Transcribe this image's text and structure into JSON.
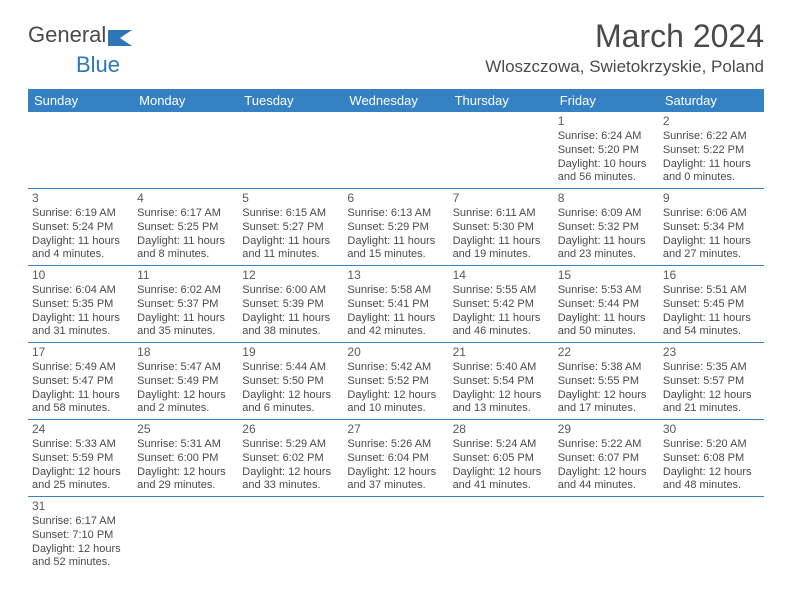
{
  "logo": {
    "text1": "General",
    "text2": "Blue"
  },
  "title": "March 2024",
  "location": "Wloszczowa, Swietokrzyskie, Poland",
  "colors": {
    "header_bg": "#3481c4",
    "header_text": "#ffffff",
    "body_text": "#4a4a4a",
    "border": "#3481c4",
    "logo_blue": "#2b77b8"
  },
  "weekdays": [
    "Sunday",
    "Monday",
    "Tuesday",
    "Wednesday",
    "Thursday",
    "Friday",
    "Saturday"
  ],
  "weeks": [
    [
      null,
      null,
      null,
      null,
      null,
      {
        "n": "1",
        "sr": "Sunrise: 6:24 AM",
        "ss": "Sunset: 5:20 PM",
        "d1": "Daylight: 10 hours",
        "d2": "and 56 minutes."
      },
      {
        "n": "2",
        "sr": "Sunrise: 6:22 AM",
        "ss": "Sunset: 5:22 PM",
        "d1": "Daylight: 11 hours",
        "d2": "and 0 minutes."
      }
    ],
    [
      {
        "n": "3",
        "sr": "Sunrise: 6:19 AM",
        "ss": "Sunset: 5:24 PM",
        "d1": "Daylight: 11 hours",
        "d2": "and 4 minutes."
      },
      {
        "n": "4",
        "sr": "Sunrise: 6:17 AM",
        "ss": "Sunset: 5:25 PM",
        "d1": "Daylight: 11 hours",
        "d2": "and 8 minutes."
      },
      {
        "n": "5",
        "sr": "Sunrise: 6:15 AM",
        "ss": "Sunset: 5:27 PM",
        "d1": "Daylight: 11 hours",
        "d2": "and 11 minutes."
      },
      {
        "n": "6",
        "sr": "Sunrise: 6:13 AM",
        "ss": "Sunset: 5:29 PM",
        "d1": "Daylight: 11 hours",
        "d2": "and 15 minutes."
      },
      {
        "n": "7",
        "sr": "Sunrise: 6:11 AM",
        "ss": "Sunset: 5:30 PM",
        "d1": "Daylight: 11 hours",
        "d2": "and 19 minutes."
      },
      {
        "n": "8",
        "sr": "Sunrise: 6:09 AM",
        "ss": "Sunset: 5:32 PM",
        "d1": "Daylight: 11 hours",
        "d2": "and 23 minutes."
      },
      {
        "n": "9",
        "sr": "Sunrise: 6:06 AM",
        "ss": "Sunset: 5:34 PM",
        "d1": "Daylight: 11 hours",
        "d2": "and 27 minutes."
      }
    ],
    [
      {
        "n": "10",
        "sr": "Sunrise: 6:04 AM",
        "ss": "Sunset: 5:35 PM",
        "d1": "Daylight: 11 hours",
        "d2": "and 31 minutes."
      },
      {
        "n": "11",
        "sr": "Sunrise: 6:02 AM",
        "ss": "Sunset: 5:37 PM",
        "d1": "Daylight: 11 hours",
        "d2": "and 35 minutes."
      },
      {
        "n": "12",
        "sr": "Sunrise: 6:00 AM",
        "ss": "Sunset: 5:39 PM",
        "d1": "Daylight: 11 hours",
        "d2": "and 38 minutes."
      },
      {
        "n": "13",
        "sr": "Sunrise: 5:58 AM",
        "ss": "Sunset: 5:41 PM",
        "d1": "Daylight: 11 hours",
        "d2": "and 42 minutes."
      },
      {
        "n": "14",
        "sr": "Sunrise: 5:55 AM",
        "ss": "Sunset: 5:42 PM",
        "d1": "Daylight: 11 hours",
        "d2": "and 46 minutes."
      },
      {
        "n": "15",
        "sr": "Sunrise: 5:53 AM",
        "ss": "Sunset: 5:44 PM",
        "d1": "Daylight: 11 hours",
        "d2": "and 50 minutes."
      },
      {
        "n": "16",
        "sr": "Sunrise: 5:51 AM",
        "ss": "Sunset: 5:45 PM",
        "d1": "Daylight: 11 hours",
        "d2": "and 54 minutes."
      }
    ],
    [
      {
        "n": "17",
        "sr": "Sunrise: 5:49 AM",
        "ss": "Sunset: 5:47 PM",
        "d1": "Daylight: 11 hours",
        "d2": "and 58 minutes."
      },
      {
        "n": "18",
        "sr": "Sunrise: 5:47 AM",
        "ss": "Sunset: 5:49 PM",
        "d1": "Daylight: 12 hours",
        "d2": "and 2 minutes."
      },
      {
        "n": "19",
        "sr": "Sunrise: 5:44 AM",
        "ss": "Sunset: 5:50 PM",
        "d1": "Daylight: 12 hours",
        "d2": "and 6 minutes."
      },
      {
        "n": "20",
        "sr": "Sunrise: 5:42 AM",
        "ss": "Sunset: 5:52 PM",
        "d1": "Daylight: 12 hours",
        "d2": "and 10 minutes."
      },
      {
        "n": "21",
        "sr": "Sunrise: 5:40 AM",
        "ss": "Sunset: 5:54 PM",
        "d1": "Daylight: 12 hours",
        "d2": "and 13 minutes."
      },
      {
        "n": "22",
        "sr": "Sunrise: 5:38 AM",
        "ss": "Sunset: 5:55 PM",
        "d1": "Daylight: 12 hours",
        "d2": "and 17 minutes."
      },
      {
        "n": "23",
        "sr": "Sunrise: 5:35 AM",
        "ss": "Sunset: 5:57 PM",
        "d1": "Daylight: 12 hours",
        "d2": "and 21 minutes."
      }
    ],
    [
      {
        "n": "24",
        "sr": "Sunrise: 5:33 AM",
        "ss": "Sunset: 5:59 PM",
        "d1": "Daylight: 12 hours",
        "d2": "and 25 minutes."
      },
      {
        "n": "25",
        "sr": "Sunrise: 5:31 AM",
        "ss": "Sunset: 6:00 PM",
        "d1": "Daylight: 12 hours",
        "d2": "and 29 minutes."
      },
      {
        "n": "26",
        "sr": "Sunrise: 5:29 AM",
        "ss": "Sunset: 6:02 PM",
        "d1": "Daylight: 12 hours",
        "d2": "and 33 minutes."
      },
      {
        "n": "27",
        "sr": "Sunrise: 5:26 AM",
        "ss": "Sunset: 6:04 PM",
        "d1": "Daylight: 12 hours",
        "d2": "and 37 minutes."
      },
      {
        "n": "28",
        "sr": "Sunrise: 5:24 AM",
        "ss": "Sunset: 6:05 PM",
        "d1": "Daylight: 12 hours",
        "d2": "and 41 minutes."
      },
      {
        "n": "29",
        "sr": "Sunrise: 5:22 AM",
        "ss": "Sunset: 6:07 PM",
        "d1": "Daylight: 12 hours",
        "d2": "and 44 minutes."
      },
      {
        "n": "30",
        "sr": "Sunrise: 5:20 AM",
        "ss": "Sunset: 6:08 PM",
        "d1": "Daylight: 12 hours",
        "d2": "and 48 minutes."
      }
    ],
    [
      {
        "n": "31",
        "sr": "Sunrise: 6:17 AM",
        "ss": "Sunset: 7:10 PM",
        "d1": "Daylight: 12 hours",
        "d2": "and 52 minutes."
      },
      null,
      null,
      null,
      null,
      null,
      null
    ]
  ]
}
